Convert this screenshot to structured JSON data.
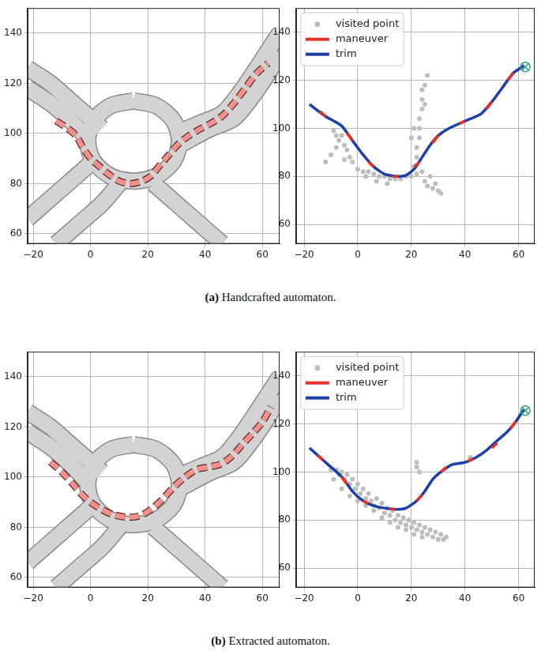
{
  "captions": [
    {
      "label": "(a)",
      "text": "Handcrafted automaton."
    },
    {
      "label": "(b)",
      "text": "Extracted automaton."
    }
  ],
  "chart_data": [
    {
      "type": "line",
      "grid": true,
      "xlim": [
        -22,
        66
      ],
      "ylim": [
        56,
        150
      ],
      "xticks": [
        {
          "value": -20,
          "label": "−20"
        },
        0,
        20,
        40,
        60
      ],
      "yticks": [
        60,
        80,
        100,
        120,
        140
      ],
      "series": [
        {
          "type": "line",
          "line_style": "road",
          "color": "#d3d3d3",
          "x": [
            -22,
            -14,
            -6,
            0,
            4
          ],
          "y": [
            126,
            120,
            112,
            106,
            102
          ]
        },
        {
          "type": "line",
          "line_style": "road",
          "color": "#d3d3d3",
          "x": [
            -22,
            -14,
            -6,
            -1
          ],
          "y": [
            118,
            112,
            104,
            98
          ]
        },
        {
          "type": "line",
          "line_style": "road",
          "color": "#d3d3d3",
          "x": [
            -22,
            -14,
            -6,
            0
          ],
          "y": [
            66,
            74,
            82,
            88
          ]
        },
        {
          "type": "line",
          "line_style": "road",
          "color": "#d3d3d3",
          "x": [
            10,
            4,
            -4,
            -12
          ],
          "y": [
            80,
            72,
            64,
            56
          ]
        },
        {
          "type": "line",
          "line_style": "road",
          "color": "#d3d3d3",
          "x": [
            22,
            30,
            38,
            46
          ],
          "y": [
            80,
            72,
            64,
            56
          ]
        },
        {
          "type": "line",
          "line_style": "road",
          "color": "#d3d3d3",
          "x": [
            30,
            38,
            46,
            52,
            58,
            66
          ],
          "y": [
            100,
            104,
            108,
            116,
            126,
            140
          ]
        },
        {
          "type": "line",
          "line_style": "road",
          "color": "#d3d3d3",
          "x": [
            32,
            42,
            50,
            56,
            62,
            66
          ],
          "y": [
            96,
            102,
            106,
            114,
            124,
            132
          ]
        },
        {
          "type": "line",
          "line_style": "road",
          "color": "#d3d3d3",
          "x": [
            15,
            23,
            29,
            31,
            29,
            23,
            15,
            7,
            1,
            -1,
            1,
            7,
            15
          ],
          "y": [
            113,
            111,
            105,
            97,
            89,
            83,
            81,
            83,
            89,
            97,
            105,
            111,
            113
          ]
        },
        {
          "type": "line",
          "line_style": "dashed",
          "color": "#f0908a",
          "x": [
            -12,
            -8,
            -5,
            -3,
            0,
            3,
            6,
            10,
            14,
            18,
            21,
            24,
            27,
            30,
            33,
            37,
            42,
            46,
            50,
            54,
            58,
            62
          ],
          "y": [
            105,
            102,
            99,
            95,
            90,
            87,
            84,
            81,
            80,
            81,
            83,
            87,
            91,
            95,
            98,
            101,
            104,
            107,
            112,
            118,
            124,
            128
          ]
        }
      ]
    },
    {
      "type": "scatter",
      "grid": true,
      "legend": "upper left",
      "xlim": [
        -23,
        66
      ],
      "ylim": [
        52,
        150
      ],
      "xticks": [
        {
          "value": -20,
          "label": "−20"
        },
        0,
        20,
        40,
        60
      ],
      "yticks": [
        60,
        80,
        100,
        120,
        140
      ],
      "series": [
        {
          "name": "visited point",
          "type": "scatter",
          "marker": "circle",
          "color": "#bdbdbd",
          "x": [
            -12,
            -10,
            -8,
            -7,
            -6,
            -5,
            -4,
            -3,
            -2,
            -5,
            -8,
            -9,
            0,
            2,
            4,
            6,
            8,
            10,
            12,
            14,
            16,
            18,
            20,
            22,
            24,
            3,
            7,
            11,
            21,
            22,
            22,
            23,
            23,
            23,
            24,
            24,
            24,
            25,
            26,
            21,
            20,
            25,
            25,
            26,
            28,
            30,
            31,
            27,
            29
          ],
          "y": [
            86,
            89,
            92,
            95,
            97,
            93,
            91,
            88,
            86,
            87,
            97,
            99,
            83,
            82,
            82,
            81,
            80,
            80,
            79,
            79,
            79,
            80,
            80,
            81,
            82,
            80,
            78,
            77,
            84,
            88,
            92,
            96,
            100,
            104,
            108,
            112,
            116,
            118,
            122,
            100,
            96,
            110,
            78,
            76,
            75,
            74,
            73,
            80,
            77
          ]
        },
        {
          "name": "maneuver",
          "type": "line",
          "line_style": "solid",
          "color": "#e8302a",
          "x": [
            -14,
            -12,
            null,
            -4,
            -2,
            null,
            4,
            6,
            null,
            13,
            15,
            null,
            21,
            23,
            null,
            28,
            30,
            null,
            38,
            40,
            null,
            48,
            50,
            null,
            56,
            58
          ],
          "y": [
            107,
            105,
            null,
            98,
            95,
            null,
            86,
            84,
            null,
            80,
            80,
            null,
            84,
            86,
            null,
            94,
            97,
            null,
            102,
            103,
            null,
            108,
            111,
            null,
            120,
            123
          ]
        },
        {
          "name": "trim",
          "type": "line",
          "line_style": "solid",
          "color": "#1f3fa8",
          "x": [
            -18,
            -12,
            -6,
            -2,
            2,
            6,
            10,
            15,
            18,
            21,
            24,
            27,
            30,
            34,
            40,
            46,
            50,
            54,
            58,
            62
          ],
          "y": [
            110,
            105,
            101,
            95,
            89,
            84,
            81,
            80,
            80.5,
            83,
            88,
            93,
            97,
            100,
            103,
            106,
            111,
            117,
            123,
            126
          ]
        },
        {
          "type": "scatter",
          "marker": "circle-x",
          "color": "#2a9d8f",
          "x": [
            62.5
          ],
          "y": [
            125.5
          ]
        }
      ]
    },
    {
      "type": "line",
      "grid": true,
      "xlim": [
        -22,
        66
      ],
      "ylim": [
        56,
        150
      ],
      "xticks": [
        {
          "value": -20,
          "label": "−20"
        },
        0,
        20,
        40,
        60
      ],
      "yticks": [
        60,
        80,
        100,
        120,
        140
      ],
      "series": [
        {
          "type": "line",
          "line_style": "road",
          "color": "#d3d3d3",
          "x": [
            -22,
            -14,
            -6,
            0,
            4
          ],
          "y": [
            126,
            120,
            112,
            106,
            102
          ]
        },
        {
          "type": "line",
          "line_style": "road",
          "color": "#d3d3d3",
          "x": [
            -22,
            -14,
            -6,
            -1
          ],
          "y": [
            118,
            112,
            104,
            98
          ]
        },
        {
          "type": "line",
          "line_style": "road",
          "color": "#d3d3d3",
          "x": [
            -22,
            -14,
            -6,
            0
          ],
          "y": [
            66,
            74,
            82,
            88
          ]
        },
        {
          "type": "line",
          "line_style": "road",
          "color": "#d3d3d3",
          "x": [
            10,
            4,
            -4,
            -12
          ],
          "y": [
            80,
            72,
            64,
            56
          ]
        },
        {
          "type": "line",
          "line_style": "road",
          "color": "#d3d3d3",
          "x": [
            22,
            30,
            38,
            46
          ],
          "y": [
            80,
            72,
            64,
            56
          ]
        },
        {
          "type": "line",
          "line_style": "road",
          "color": "#d3d3d3",
          "x": [
            30,
            38,
            46,
            52,
            58,
            66
          ],
          "y": [
            100,
            104,
            108,
            116,
            126,
            140
          ]
        },
        {
          "type": "line",
          "line_style": "road",
          "color": "#d3d3d3",
          "x": [
            32,
            42,
            50,
            56,
            62,
            66
          ],
          "y": [
            96,
            102,
            106,
            114,
            124,
            132
          ]
        },
        {
          "type": "line",
          "line_style": "road",
          "color": "#d3d3d3",
          "x": [
            15,
            23,
            29,
            31,
            29,
            23,
            15,
            7,
            1,
            -1,
            1,
            7,
            15
          ],
          "y": [
            113,
            111,
            105,
            97,
            89,
            83,
            81,
            83,
            89,
            97,
            105,
            111,
            113
          ]
        },
        {
          "type": "line",
          "line_style": "dashed",
          "color": "#f0908a",
          "x": [
            -14,
            -10,
            -6,
            -3,
            0,
            4,
            8,
            13,
            17,
            21,
            25,
            29,
            33,
            37,
            41,
            45,
            49,
            53,
            57,
            60,
            63
          ],
          "y": [
            106,
            102,
            97,
            93,
            90,
            87,
            85,
            84,
            84.5,
            87,
            91,
            96,
            100,
            103,
            104,
            105,
            108,
            113,
            118,
            122,
            128
          ]
        }
      ]
    },
    {
      "type": "scatter",
      "grid": true,
      "legend": "upper left",
      "xlim": [
        -23,
        66
      ],
      "ylim": [
        52,
        150
      ],
      "xticks": [
        {
          "value": -20,
          "label": "−20"
        },
        0,
        20,
        40,
        60
      ],
      "yticks": [
        60,
        80,
        100,
        120,
        140
      ],
      "series": [
        {
          "name": "visited point",
          "type": "scatter",
          "marker": "circle",
          "color": "#bdbdbd",
          "x": [
            -8,
            -7,
            -6,
            -5,
            -4,
            -3,
            -2,
            -1,
            0,
            1,
            2,
            3,
            4,
            5,
            6,
            7,
            8,
            9,
            10,
            11,
            12,
            13,
            14,
            15,
            16,
            17,
            18,
            19,
            20,
            21,
            22,
            23,
            24,
            25,
            26,
            27,
            28,
            29,
            30,
            31,
            32,
            -6,
            -3,
            0,
            3,
            6,
            9,
            12,
            15,
            18,
            21,
            24,
            -10,
            -9,
            22,
            23,
            33,
            22,
            42
          ],
          "y": [
            101,
            99,
            100,
            97,
            99,
            95,
            97,
            93,
            95,
            91,
            93,
            89,
            91,
            88,
            86,
            89,
            85,
            87,
            83,
            85,
            82,
            84,
            80,
            82,
            79,
            81,
            78,
            80,
            77,
            79,
            76,
            78,
            75,
            77,
            74,
            76,
            73,
            75,
            72,
            74,
            72,
            93,
            90,
            88,
            86,
            84,
            81,
            79,
            77,
            76,
            74,
            73,
            101,
            97,
            104,
            100,
            73,
            102,
            106
          ]
        },
        {
          "name": "maneuver",
          "type": "line",
          "line_style": "solid",
          "color": "#e8302a",
          "x": [
            -15,
            -13,
            null,
            -6,
            -4,
            null,
            2,
            4,
            null,
            12,
            14,
            null,
            22,
            24,
            null,
            31,
            33,
            null,
            41,
            43,
            null,
            50,
            52,
            null,
            57,
            59
          ],
          "y": [
            107,
            105,
            null,
            98,
            95,
            null,
            88,
            87,
            null,
            84.7,
            84.5,
            null,
            88,
            90.5,
            null,
            100,
            102,
            null,
            104.5,
            105.5,
            null,
            110,
            112,
            null,
            118,
            121
          ]
        },
        {
          "name": "trim",
          "type": "line",
          "line_style": "solid",
          "color": "#1f3fa8",
          "x": [
            -18,
            -12,
            -6,
            -2,
            2,
            6,
            10,
            15,
            18,
            22,
            25,
            28,
            31,
            35,
            40,
            44,
            48,
            52,
            56,
            59,
            62
          ],
          "y": [
            110,
            104,
            98,
            92,
            88,
            86,
            85,
            84.5,
            85,
            88,
            92,
            97,
            100,
            103,
            104,
            106,
            109,
            113,
            117,
            121,
            126
          ]
        },
        {
          "type": "scatter",
          "marker": "circle-x",
          "color": "#2a9d8f",
          "x": [
            62.5
          ],
          "y": [
            125.5
          ]
        }
      ]
    }
  ]
}
